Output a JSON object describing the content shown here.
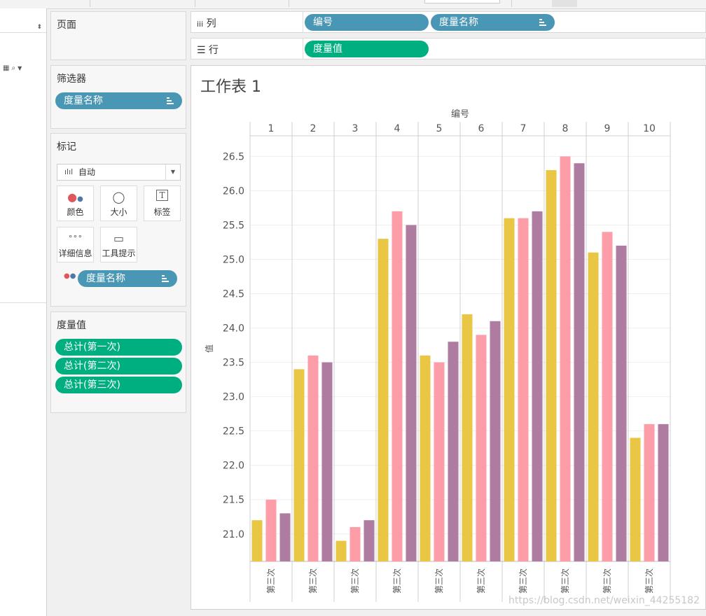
{
  "shelves": {
    "pages_label": "页面",
    "columns_label": "列",
    "rows_label": "行",
    "column_pills": [
      "编号",
      "度量名称"
    ],
    "row_pills": [
      "度量值"
    ]
  },
  "filters": {
    "title": "筛选器",
    "pill": "度量名称"
  },
  "marks": {
    "title": "标记",
    "type_label": "自动",
    "buttons": [
      "颜色",
      "大小",
      "标签",
      "详细信息",
      "工具提示"
    ],
    "color_pill": "度量名称"
  },
  "measure_values": {
    "title": "度量值",
    "items": [
      "总计(第一次)",
      "总计(第二次)",
      "总计(第三次)"
    ]
  },
  "colors": {
    "blue_pill": "#4a96b5",
    "green_pill": "#00af7f",
    "series": [
      "#e9c644",
      "#fc9da8",
      "#ae7ba1"
    ]
  },
  "chart_data": {
    "type": "bar",
    "title": "工作表 1",
    "top_axis_label": "编号",
    "ylabel": "值",
    "ylim": [
      20.6,
      26.8
    ],
    "yticks": [
      21.0,
      21.5,
      22.0,
      22.5,
      23.0,
      23.5,
      24.0,
      24.5,
      25.0,
      25.5,
      26.0,
      26.5
    ],
    "categories": [
      "1",
      "2",
      "3",
      "4",
      "5",
      "6",
      "7",
      "8",
      "9",
      "10"
    ],
    "bottom_label": "第三次",
    "series": [
      {
        "values": [
          21.2,
          23.4,
          20.9,
          25.3,
          23.6,
          24.2,
          25.6,
          26.3,
          25.1,
          22.4
        ]
      },
      {
        "values": [
          21.5,
          23.6,
          21.1,
          25.7,
          23.5,
          23.9,
          25.6,
          26.5,
          25.4,
          22.6
        ]
      },
      {
        "values": [
          21.3,
          23.5,
          21.2,
          25.5,
          23.8,
          24.1,
          25.7,
          26.4,
          25.2,
          22.6
        ]
      }
    ]
  },
  "watermark": "https://blog.csdn.net/weixin_44255182"
}
